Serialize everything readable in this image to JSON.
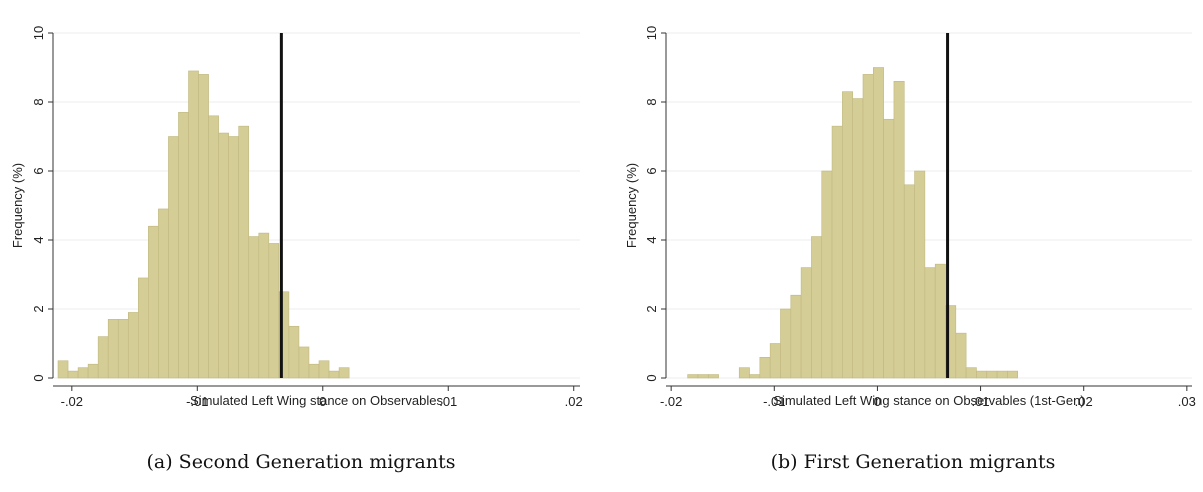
{
  "chart_data": [
    {
      "type": "bar",
      "subtype": "histogram",
      "caption": "(a) Second Generation migrants",
      "xlabel": "Simulated Left Wing stance on Observables",
      "ylabel": "Frequency (%)",
      "xlim": [
        -0.0215,
        0.0205
      ],
      "ylim": [
        0,
        10
      ],
      "xticks": [
        -0.02,
        -0.01,
        0,
        0.01,
        0.02
      ],
      "xtick_labels": [
        "-.02",
        "-.01",
        "0",
        ".01",
        ".02"
      ],
      "yticks": [
        0,
        2,
        4,
        6,
        8,
        10
      ],
      "ytick_labels": [
        "0",
        "2",
        "4",
        "6",
        "8",
        "10"
      ],
      "grid": true,
      "bar_color": "#d4cd95",
      "bar_edge": "#c0b880",
      "reference_line": -0.0033,
      "bin_start": -0.0211,
      "bin_width": 0.0008,
      "values": [
        0.5,
        0.2,
        0.3,
        0.4,
        1.2,
        1.7,
        1.7,
        1.9,
        2.9,
        4.4,
        4.9,
        7.0,
        7.7,
        8.9,
        8.8,
        7.6,
        7.1,
        7.0,
        7.3,
        4.1,
        4.2,
        3.9,
        2.5,
        1.5,
        0.9,
        0.4,
        0.5,
        0.2,
        0.3
      ]
    },
    {
      "type": "bar",
      "subtype": "histogram",
      "caption": "(b) First Generation migrants",
      "xlabel": "Simulated Left Wing stance on Observables (1st-Gen)",
      "ylabel": "Frequency (%)",
      "xlim": [
        -0.0205,
        0.0305
      ],
      "ylim": [
        0,
        10
      ],
      "xticks": [
        -0.02,
        -0.01,
        0,
        0.01,
        0.02,
        0.03
      ],
      "xtick_labels": [
        "-.02",
        "-.01",
        "0",
        ".01",
        ".02",
        ".03"
      ],
      "yticks": [
        0,
        2,
        4,
        6,
        8,
        10
      ],
      "ytick_labels": [
        "0",
        "2",
        "4",
        "6",
        "8",
        "10"
      ],
      "grid": true,
      "bar_color": "#d4cd95",
      "bar_edge": "#c0b880",
      "reference_line": 0.0068,
      "bin_start": -0.0184,
      "bin_width": 0.001,
      "values": [
        0.1,
        0.1,
        0.1,
        0,
        0,
        0.3,
        0.1,
        0.6,
        1.0,
        2.0,
        2.4,
        3.2,
        4.1,
        6.0,
        7.3,
        8.3,
        8.1,
        8.8,
        9.0,
        7.5,
        8.6,
        5.6,
        6.0,
        3.2,
        3.3,
        2.1,
        1.3,
        0.3,
        0.2,
        0.2,
        0.2,
        0.2
      ]
    }
  ]
}
